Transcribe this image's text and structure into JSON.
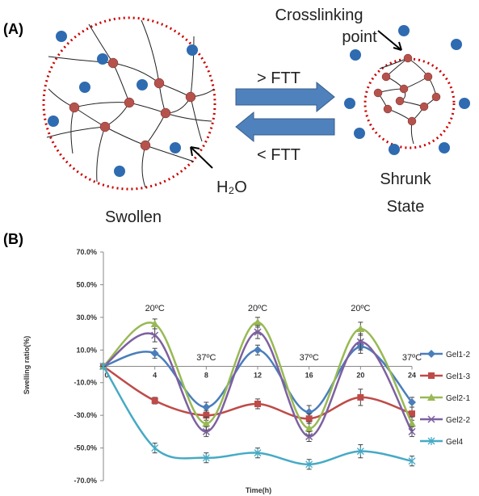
{
  "diagram": {
    "label": "(A)",
    "crosslink": [
      "Crosslinking",
      "point"
    ],
    "forward": "> FTT",
    "backward": "< FTT",
    "water": "H₂O",
    "swollen": "Swollen",
    "shrunk": [
      "Shrunk",
      "State"
    ]
  },
  "chart_data": {
    "type": "line",
    "panel_label": "(B)",
    "x_label": "Time(h)",
    "y_label": "Swelling ratio(%)",
    "x": [
      0,
      4,
      8,
      12,
      16,
      20,
      24
    ],
    "xlim": [
      0,
      24
    ],
    "xticks": [
      0,
      4,
      8,
      12,
      16,
      20,
      24
    ],
    "ylim": [
      -70,
      70
    ],
    "yticks": [
      {
        "value": -70,
        "label": "-70.0%"
      },
      {
        "value": -50,
        "label": "-50.0%"
      },
      {
        "value": -30,
        "label": "-30.0%"
      },
      {
        "value": -10,
        "label": "-10.0%"
      },
      {
        "value": 10,
        "label": "10.0%"
      },
      {
        "value": 30,
        "label": "30.0%"
      },
      {
        "value": 50,
        "label": "50.0%"
      },
      {
        "value": 70,
        "label": "70.0%"
      }
    ],
    "annotations": [
      {
        "text": "20ºC",
        "x": 4
      },
      {
        "text": "37ºC",
        "x": 8
      },
      {
        "text": "20ºC",
        "x": 12
      },
      {
        "text": "37ºC",
        "x": 16
      },
      {
        "text": "20ºC",
        "x": 20
      },
      {
        "text": "37ºC",
        "x": 24
      }
    ],
    "legend": "right",
    "series": [
      {
        "name": "Gel1-2",
        "color": "#4a7ebb",
        "marker": "diamond",
        "values": [
          0,
          8,
          -25,
          10,
          -28,
          12,
          -22
        ],
        "errors": [
          0,
          3,
          3,
          3,
          4,
          4,
          3
        ]
      },
      {
        "name": "Gel1-3",
        "color": "#be4b48",
        "marker": "square",
        "values": [
          0,
          -21,
          -30,
          -23,
          -32,
          -19,
          -29
        ],
        "errors": [
          0,
          2,
          3,
          3,
          3,
          5,
          4
        ]
      },
      {
        "name": "Gel2-1",
        "color": "#98b954",
        "marker": "triangle",
        "values": [
          0,
          26,
          -35,
          27,
          -38,
          23,
          -35
        ],
        "errors": [
          0,
          3,
          4,
          3,
          4,
          4,
          4
        ]
      },
      {
        "name": "Gel2-2",
        "color": "#7d60a0",
        "marker": "x",
        "values": [
          0,
          19,
          -40,
          21,
          -43,
          15,
          -40
        ],
        "errors": [
          0,
          4,
          3,
          4,
          3,
          5,
          3
        ]
      },
      {
        "name": "Gel4",
        "color": "#46aac5",
        "marker": "star",
        "values": [
          0,
          -50,
          -56,
          -53,
          -60,
          -52,
          -58
        ],
        "errors": [
          0,
          3,
          3,
          3,
          3,
          4,
          3
        ]
      }
    ]
  }
}
